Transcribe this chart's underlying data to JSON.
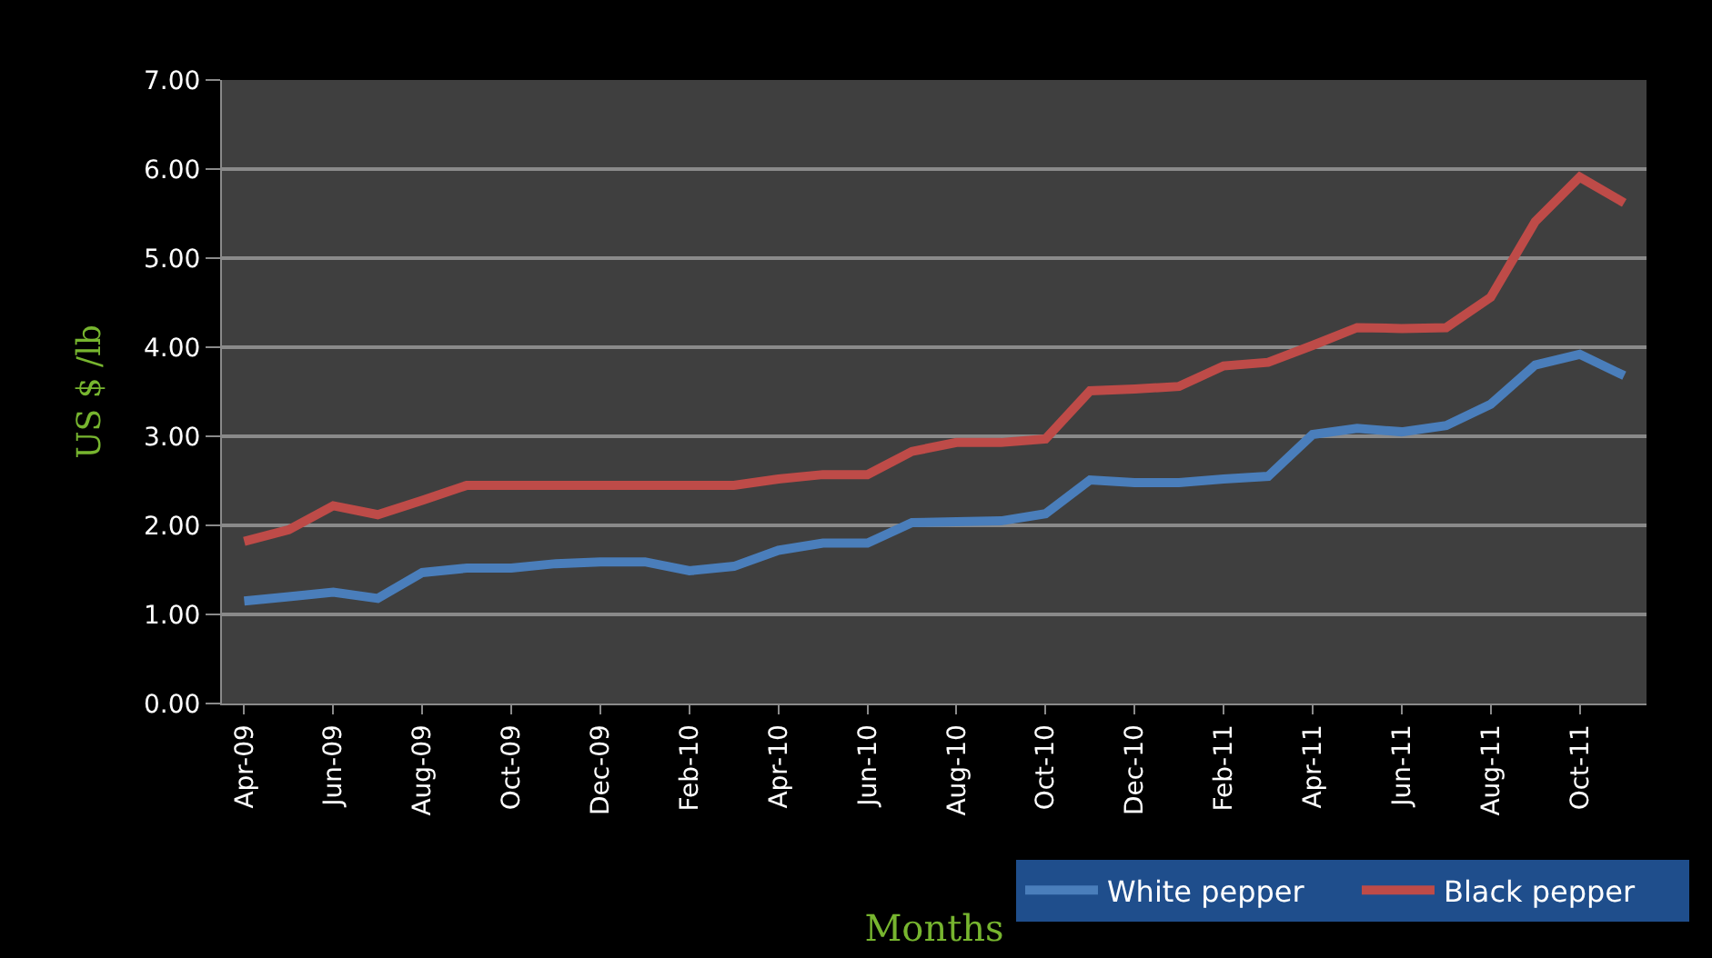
{
  "chart_data": {
    "type": "line",
    "xlabel": "Months",
    "ylabel": "US $ /lb",
    "categories": [
      "Apr-09",
      null,
      "Jun-09",
      null,
      "Aug-09",
      null,
      "Oct-09",
      null,
      "Dec-09",
      null,
      "Feb-10",
      null,
      "Apr-10",
      null,
      "Jun-10",
      null,
      "Aug-10",
      null,
      "Oct-10",
      null,
      "Dec-10",
      null,
      "Feb-11",
      null,
      "Apr-11",
      null,
      "Jun-11",
      null,
      "Aug-11",
      null,
      "Oct-11",
      null
    ],
    "series": [
      {
        "name": "White pepper",
        "color": "#4a7ebb",
        "values": [
          1.15,
          1.2,
          1.25,
          1.18,
          1.47,
          1.52,
          1.52,
          1.57,
          1.59,
          1.59,
          1.49,
          1.54,
          1.72,
          1.8,
          1.8,
          2.03,
          2.04,
          2.05,
          2.13,
          2.51,
          2.48,
          2.48,
          2.52,
          2.55,
          3.02,
          3.09,
          3.05,
          3.12,
          3.36,
          3.8,
          3.92,
          3.68
        ]
      },
      {
        "name": "Black pepper",
        "color": "#be4b48",
        "values": [
          1.82,
          1.95,
          2.22,
          2.12,
          2.28,
          2.45,
          2.45,
          2.45,
          2.45,
          2.45,
          2.45,
          2.45,
          2.52,
          2.57,
          2.57,
          2.83,
          2.93,
          2.93,
          2.97,
          3.51,
          3.53,
          3.56,
          3.79,
          3.83,
          4.02,
          4.22,
          4.21,
          4.22,
          4.56,
          5.41,
          5.91,
          5.62
        ]
      }
    ],
    "ylim": [
      0,
      7
    ],
    "yticks": [
      {
        "value": 0,
        "label": "0.00"
      },
      {
        "value": 1,
        "label": "1.00"
      },
      {
        "value": 2,
        "label": "2.00"
      },
      {
        "value": 3,
        "label": "3.00"
      },
      {
        "value": 4,
        "label": "4.00"
      },
      {
        "value": 5,
        "label": "5.00"
      },
      {
        "value": 6,
        "label": "6.00"
      },
      {
        "value": 7,
        "label": "7.00"
      }
    ],
    "grid": "y",
    "legend": "bottom right",
    "marker": "none",
    "line_style": "solid"
  }
}
